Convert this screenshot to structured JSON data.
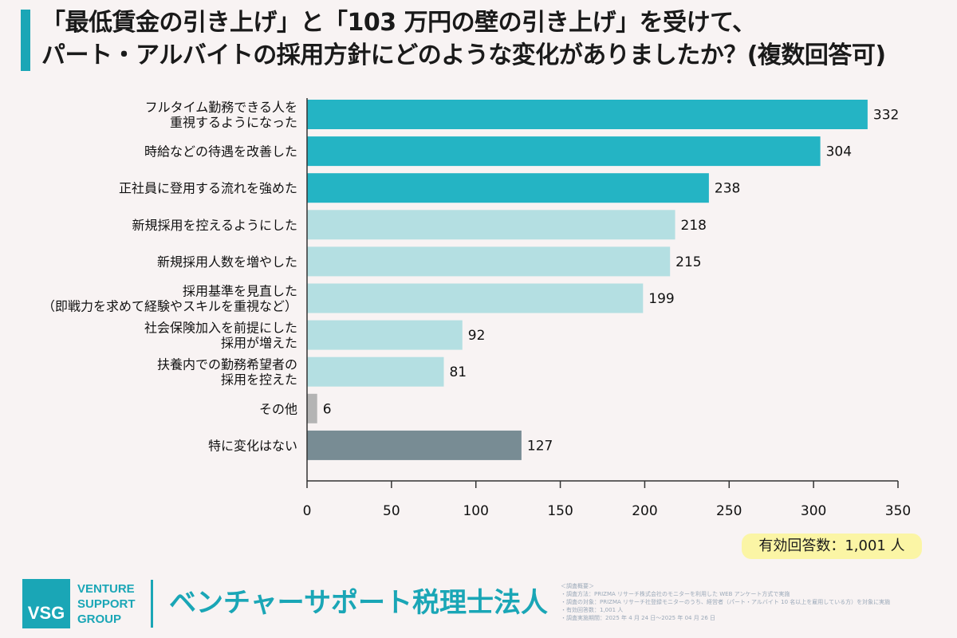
{
  "title": {
    "line1": "「最低賃金の引き上げ」と「103 万円の壁の引き上げ」を受けて、",
    "line2": "パート・アルバイトの採用方針にどのような変化がありましたか？(複数回答可)"
  },
  "chart_data": {
    "type": "bar",
    "orientation": "horizontal",
    "categories": [
      [
        "フルタイム勤務できる人を",
        "重視するようになった"
      ],
      [
        "時給などの待遇を改善した"
      ],
      [
        "正社員に登用する流れを強めた"
      ],
      [
        "新規採用を控えるようにした"
      ],
      [
        "新規採用人数を増やした"
      ],
      [
        "採用基準を見直した",
        "（即戦力を求めて経験やスキルを重視など）"
      ],
      [
        "社会保険加入を前提にした",
        "採用が増えた"
      ],
      [
        "扶養内での勤務希望者の",
        "採用を控えた"
      ],
      [
        "その他"
      ],
      [
        "特に変化はない"
      ]
    ],
    "values": [
      332,
      304,
      238,
      218,
      215,
      199,
      92,
      81,
      6,
      127
    ],
    "bar_colors": [
      "#24b4c4",
      "#24b4c4",
      "#24b4c4",
      "#b4dfe2",
      "#b4dfe2",
      "#b4dfe2",
      "#b4dfe2",
      "#b4dfe2",
      "#b4b4b4",
      "#788c94"
    ],
    "xlim": [
      0,
      350
    ],
    "xticks": [
      0,
      50,
      100,
      150,
      200,
      250,
      300,
      350
    ],
    "grid": false
  },
  "response_count": "有効回答数：1,001 人",
  "footer": {
    "logo_text": "VSG",
    "company_lines": [
      "VENTURE",
      "SUPPORT",
      "GROUP"
    ],
    "corp_name": "ベンチャーサポート税理士法人",
    "survey_lines": [
      "＜調査概要＞",
      "・調査方法：PRIZMA リサーチ株式会社のモニターを利用した WEB アンケート方式で実施",
      "・調査の対象：PRIZMA リサーチ社登録モニターのうち、経営者（パート・アルバイト 10 名以上を雇用している方）を対象に実施",
      "・有効回答数：1,001 人",
      "・調査実施期間：2025 年 4 月 24 日～2025 年 04 月 26 日"
    ]
  }
}
